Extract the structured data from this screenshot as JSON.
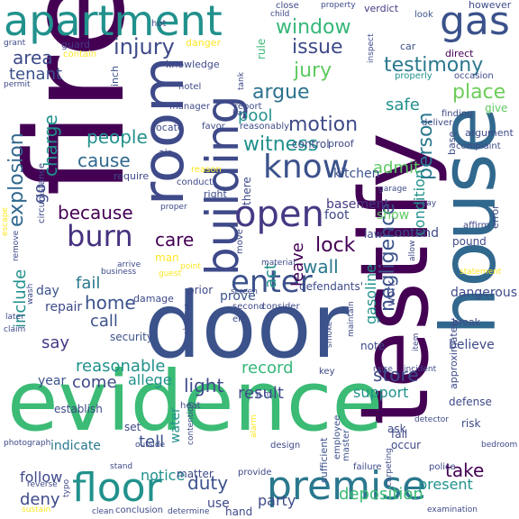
{
  "cloud": {
    "colormap": [
      "#440154",
      "#3b528b",
      "#21918c",
      "#5ec962",
      "#fde725"
    ],
    "words": [
      "fire",
      "testify",
      "evidence",
      "door",
      "house",
      "room",
      "apartment",
      "building",
      "gas",
      "premise",
      "floor",
      "open",
      "know",
      "enter",
      "burn",
      "injury",
      "window",
      "issue",
      "testimony",
      "jury",
      "argue",
      "motion",
      "explosion",
      "witness",
      "place",
      "person",
      "lock",
      "negligence",
      "care",
      "because",
      "area",
      "charge",
      "cause",
      "people",
      "tenant",
      "pool",
      "safe",
      "admit",
      "wall",
      "home",
      "fail",
      "light",
      "record",
      "store",
      "say",
      "come",
      "reasonable",
      "call",
      "duty",
      "take",
      "deposition",
      "deny",
      "leave",
      "act",
      "include",
      "go",
      "result",
      "support",
      "present",
      "gasoline",
      "condition",
      "kitchen",
      "basement",
      "foot",
      "show",
      "contend",
      "tell",
      "water",
      "notice",
      "allege",
      "year",
      "prove",
      "security",
      "day",
      "repair",
      "indicate",
      "follow",
      "party",
      "use",
      "inch",
      "danger",
      "hot",
      "guard",
      "contain",
      "close",
      "verdict",
      "car",
      "look",
      "however",
      "direct",
      "properly",
      "occasion",
      "rule",
      "finding",
      "give",
      "deliver",
      "argument",
      "complaint",
      "base",
      "affirm",
      "pound",
      "error",
      "sufficient",
      "employee",
      "master",
      "set",
      "fall",
      "ask",
      "occur",
      "defense",
      "risk",
      "detector",
      "bedroom",
      "police",
      "examination",
      "failure",
      "carpeting",
      "conclusion",
      "determine",
      "clean",
      "hand",
      "sustain",
      "reverse",
      "photograph",
      "outside",
      "alarm",
      "design",
      "matter",
      "stand",
      "provide",
      "second",
      "consider",
      "note",
      "believe",
      "break",
      "dangerous",
      "incident",
      "item",
      "raise",
      "key",
      "smoke",
      "maintain",
      "work",
      "err",
      "observe",
      "damage",
      "prior",
      "screen",
      "man",
      "point",
      "arrive",
      "require",
      "air",
      "locate",
      "manager",
      "hotel",
      "bar",
      "report",
      "control",
      "proof",
      "reasonably",
      "favor",
      "knowledge",
      "grant",
      "permit",
      "circumstance",
      "escape",
      "remove",
      "later",
      "claim",
      "wash",
      "establish",
      "heat",
      "business",
      "guest",
      "material",
      "law",
      "defendants'",
      "move",
      "right",
      "reason",
      "conduct",
      "proper",
      "statement",
      "allow",
      "way",
      "garage",
      "child",
      "property",
      "inspect",
      "tank",
      "there",
      "approximately",
      "contention",
      "p.m.",
      "typo"
    ]
  }
}
